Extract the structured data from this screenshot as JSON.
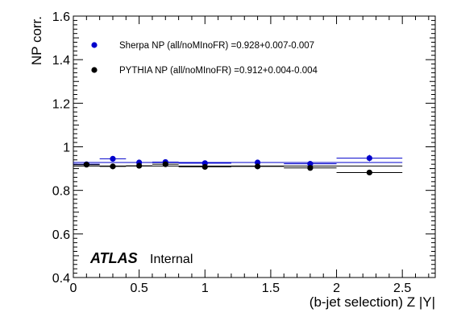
{
  "chart_data": {
    "type": "scatter",
    "xlabel": "(b-jet selection) Z |Y|",
    "ylabel": "NP corr.",
    "xlim": [
      0,
      2.75
    ],
    "ylim": [
      0.4,
      1.6
    ],
    "x_ticks": [
      0,
      0.5,
      1,
      1.5,
      2,
      2.5
    ],
    "x_tick_labels": [
      "0",
      "0.5",
      "1",
      "1.5",
      "2",
      "2.5"
    ],
    "y_ticks": [
      0.4,
      0.6,
      0.8,
      1.0,
      1.2,
      1.4,
      1.6
    ],
    "y_tick_labels": [
      "0.4",
      "0.6",
      "0.8",
      "1",
      "1.2",
      "1.4",
      "1.6"
    ],
    "grid": false,
    "legend_position": "top-left",
    "annotation": {
      "bold": "ATLAS",
      "normal": "Internal"
    },
    "series": [
      {
        "name": "Sherpa NP (all/noMInoFR) =0.928+0.007-0.007",
        "color": "#0000cc",
        "fit_value": 0.928,
        "fit_xrange": [
          0,
          2.5
        ],
        "points": [
          {
            "x": 0.1,
            "y": 0.92,
            "xerr": 0.1,
            "yerr": 0.006
          },
          {
            "x": 0.3,
            "y": 0.945,
            "xerr": 0.1,
            "yerr": 0.008
          },
          {
            "x": 0.5,
            "y": 0.928,
            "xerr": 0.1,
            "yerr": 0.006
          },
          {
            "x": 0.7,
            "y": 0.93,
            "xerr": 0.1,
            "yerr": 0.006
          },
          {
            "x": 1.0,
            "y": 0.925,
            "xerr": 0.2,
            "yerr": 0.006
          },
          {
            "x": 1.4,
            "y": 0.928,
            "xerr": 0.2,
            "yerr": 0.006
          },
          {
            "x": 1.8,
            "y": 0.922,
            "xerr": 0.2,
            "yerr": 0.007
          },
          {
            "x": 2.25,
            "y": 0.948,
            "xerr": 0.25,
            "yerr": 0.015
          }
        ]
      },
      {
        "name": "PYTHIA NP (all/noMInoFR) =0.912+0.004-0.004",
        "color": "#000000",
        "fit_value": 0.912,
        "fit_xrange": [
          0,
          2.5
        ],
        "points": [
          {
            "x": 0.1,
            "y": 0.918,
            "xerr": 0.1,
            "yerr": 0.005
          },
          {
            "x": 0.3,
            "y": 0.91,
            "xerr": 0.1,
            "yerr": 0.005
          },
          {
            "x": 0.5,
            "y": 0.913,
            "xerr": 0.1,
            "yerr": 0.005
          },
          {
            "x": 0.7,
            "y": 0.92,
            "xerr": 0.1,
            "yerr": 0.005
          },
          {
            "x": 1.0,
            "y": 0.908,
            "xerr": 0.2,
            "yerr": 0.005
          },
          {
            "x": 1.4,
            "y": 0.91,
            "xerr": 0.2,
            "yerr": 0.005
          },
          {
            "x": 1.8,
            "y": 0.903,
            "xerr": 0.2,
            "yerr": 0.005
          },
          {
            "x": 2.25,
            "y": 0.882,
            "xerr": 0.25,
            "yerr": 0.006
          }
        ]
      }
    ]
  }
}
